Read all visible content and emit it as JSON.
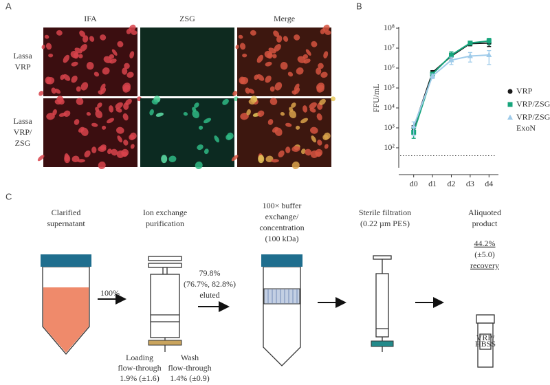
{
  "panel_a": {
    "label": "A",
    "columns": [
      "IFA",
      "ZSG",
      "Merge"
    ],
    "rows": [
      [
        "Lassa",
        "VRP"
      ],
      [
        "Lassa",
        "VRP/",
        "ZSG"
      ]
    ]
  },
  "chart_data": {
    "panel_label": "B",
    "type": "line",
    "y_label": "FFU/mL",
    "y_scale": "log",
    "categories": [
      "d0",
      "d1",
      "d2",
      "d3",
      "d4"
    ],
    "ylim": [
      10,
      100000000
    ],
    "yticks": [
      {
        "value": 100,
        "label": "10²"
      },
      {
        "value": 1000,
        "label": "10³"
      },
      {
        "value": 10000,
        "label": "10⁴"
      },
      {
        "value": 100000,
        "label": "10⁵"
      },
      {
        "value": 1000000,
        "label": "10⁶"
      },
      {
        "value": 10000000,
        "label": "10⁷"
      },
      {
        "value": 100000000,
        "label": "10⁸"
      }
    ],
    "detection_limit": 40,
    "legend": "right",
    "series": [
      {
        "name": "VRP",
        "color": "#1a1a1a",
        "marker": "circle",
        "values": [
          1000,
          600000,
          4000000,
          17000000,
          18000000
        ],
        "errors": [
          300,
          150000,
          1500000,
          4000000,
          6000000
        ]
      },
      {
        "name": "VRP/ZSG",
        "color": "#17a57c",
        "marker": "square",
        "values": [
          600,
          500000,
          4500000,
          18000000,
          23000000
        ],
        "errors": [
          300,
          100000,
          2000000,
          3000000,
          8000000
        ]
      },
      {
        "name": "VRP/ZSG/ExoN",
        "color": "#9fcbea",
        "marker": "triangle",
        "values": [
          1200,
          400000,
          2500000,
          4000000,
          4500000
        ],
        "errors": [
          800,
          100000,
          1000000,
          2000000,
          3000000
        ]
      }
    ]
  },
  "panel_c": {
    "label": "C",
    "steps": [
      [
        "Clarified",
        "supernatant"
      ],
      [
        "Ion exchange",
        "purification"
      ],
      [
        "100× buffer",
        "exchange/",
        "concentration",
        "(100 kDa)"
      ],
      [
        "Sterile filtration",
        "(0.22 µm PES)"
      ],
      [
        "Aliquoted",
        "product"
      ]
    ],
    "arrow_labels": [
      [
        "100%"
      ],
      [
        "79.8%",
        "(76.7%, 82.8%)",
        "eluted"
      ]
    ],
    "recovery": [
      "44.2%",
      "(±5.0)",
      "recovery"
    ],
    "losses": [
      [
        "Loading",
        "flow-through",
        "1.9% (±1.6)"
      ],
      [
        "Wash",
        "flow-through",
        "1.4% (±0.9)"
      ]
    ],
    "vial_label": [
      "VRP/",
      "HBSS"
    ]
  }
}
